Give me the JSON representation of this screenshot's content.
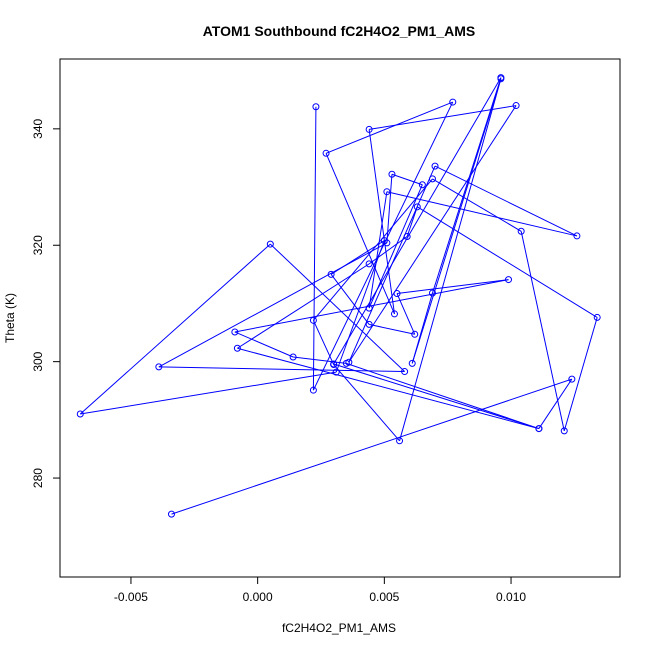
{
  "chart_data": {
    "type": "line",
    "title": "ATOM1 Southbound fC2H4O2_PM1_AMS",
    "xlabel": "fC2H4O2_PM1_AMS",
    "ylabel": "Theta (K)",
    "xlim": [
      -0.0078,
      0.0143
    ],
    "ylim": [
      263,
      352
    ],
    "x_ticks": [
      -0.005,
      0.0,
      0.005,
      0.01
    ],
    "x_tick_labels": [
      "-0.005",
      "0.000",
      "0.005",
      "0.010"
    ],
    "y_ticks": [
      280,
      300,
      320,
      340
    ],
    "y_tick_labels": [
      "280",
      "300",
      "320",
      "340"
    ],
    "grid": false,
    "legend": "none",
    "series": [
      {
        "color": "#0000ff",
        "marker": "open-circle",
        "points": [
          [
            0.0023,
            343.8
          ],
          [
            0.0022,
            295.1
          ],
          [
            0.0077,
            344.6
          ],
          [
            0.0027,
            335.8
          ],
          [
            0.0054,
            308.2
          ],
          [
            0.0044,
            339.9
          ],
          [
            0.0102,
            344.0
          ],
          [
            0.0036,
            299.9
          ],
          [
            0.007,
            333.6
          ],
          [
            0.0126,
            321.6
          ],
          [
            0.0051,
            329.2
          ],
          [
            0.0044,
            309.2
          ],
          [
            0.0065,
            330.4
          ],
          [
            0.0053,
            332.2
          ],
          [
            0.0051,
            320.4
          ],
          [
            -0.0039,
            299.1
          ],
          [
            0.0058,
            298.3
          ],
          [
            0.0005,
            320.2
          ],
          [
            -0.007,
            291.0
          ],
          [
            0.0031,
            298.2
          ],
          [
            0.005,
            320.8
          ],
          [
            0.0029,
            315.0
          ],
          [
            0.0044,
            306.4
          ],
          [
            0.0062,
            304.7
          ],
          [
            0.0055,
            311.7
          ],
          [
            0.0099,
            314.1
          ],
          [
            -0.0009,
            305.1
          ],
          [
            0.0014,
            300.8
          ],
          [
            0.0035,
            299.7
          ],
          [
            0.0111,
            288.5
          ],
          [
            -0.0008,
            302.3
          ],
          [
            0.0044,
            316.8
          ],
          [
            0.0059,
            321.5
          ],
          [
            0.0063,
            326.6
          ],
          [
            0.0134,
            307.6
          ],
          [
            0.0121,
            288.1
          ],
          [
            0.0104,
            322.4
          ],
          [
            0.0069,
            331.4
          ],
          [
            0.0022,
            307.1
          ],
          [
            0.003,
            299.5
          ],
          [
            0.0056,
            286.4
          ],
          [
            0.0096,
            348.6
          ],
          [
            0.0061,
            299.7
          ],
          [
            0.0069,
            311.8
          ],
          [
            0.0096,
            348.8
          ],
          [
            0.003,
            299.6
          ],
          [
            0.0111,
            288.5
          ],
          [
            0.0124,
            297.0
          ],
          [
            -0.0034,
            273.8
          ]
        ]
      }
    ]
  }
}
